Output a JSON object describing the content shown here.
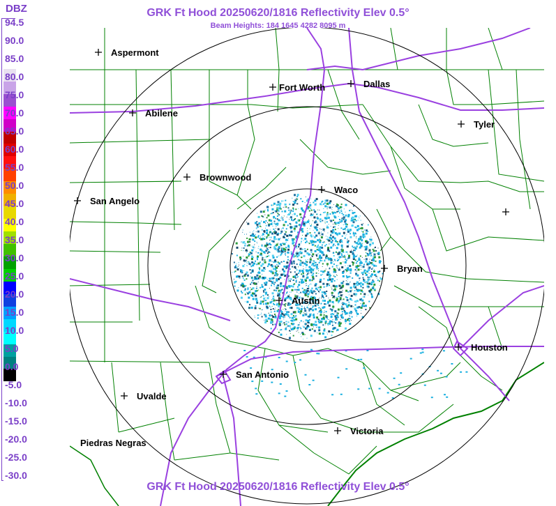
{
  "header": {
    "title": "GRK Ft Hood 20250620/1816 Reflectivity Elev 0.5°",
    "beam_heights": "Beam Heights: 184 1645 4282 8095 m"
  },
  "footer": {
    "title": "GRK Ft Hood 20250620/1816 Reflectivity Elev 0.5°"
  },
  "legend": {
    "unit": "DBZ",
    "labels": [
      "94.5",
      "90.0",
      "85.0",
      "80.0",
      "75.0",
      "70.0",
      "65.0",
      "60.0",
      "55.0",
      "50.0",
      "45.0",
      "40.0",
      "35.0",
      "30.0",
      "25.0",
      "20.0",
      "15.0",
      "10.0",
      "5.0",
      "0.0",
      "-5.0",
      "-10.0",
      "-15.0",
      "-20.0",
      "-25.0",
      "-30.0"
    ],
    "colors": [
      "#ffffff",
      "#ffffff",
      "#ffffff",
      "#ffffff",
      "#e8e0f0",
      "#c9a4e8",
      "#9a50d0",
      "#ff00ff",
      "#d000c8",
      "#c00000",
      "#e00000",
      "#ff1010",
      "#ff4000",
      "#ff8c00",
      "#f0b000",
      "#e8d800",
      "#ffff00",
      "#a0e000",
      "#40c000",
      "#00a000",
      "#00d000",
      "#0000ff",
      "#1040e0",
      "#00a0ff",
      "#00d8ff",
      "#00ffff",
      "#00a0a0",
      "#008080",
      "#000000",
      "#ffffff",
      "#ffffff",
      "#ffffff",
      "#ffffff",
      "#ffffff",
      "#ffffff",
      "#ffffff",
      "#ffffff"
    ]
  },
  "map": {
    "cities": [
      {
        "name": "Aspermont"
      },
      {
        "name": "Abilene"
      },
      {
        "name": "Fort Worth"
      },
      {
        "name": "Dallas"
      },
      {
        "name": "Tyler"
      },
      {
        "name": "Brownwood"
      },
      {
        "name": "Waco"
      },
      {
        "name": "San Angelo"
      },
      {
        "name": "Bryan"
      },
      {
        "name": "Austin"
      },
      {
        "name": "Houston"
      },
      {
        "name": "San Antonio"
      },
      {
        "name": "Uvalde"
      },
      {
        "name": "Victoria"
      },
      {
        "name": "Piedras Negras"
      }
    ],
    "unlabeled_marker_count": 1,
    "colors": {
      "county_lines": "#008000",
      "highways": "#9a40e0",
      "range_rings": "#000000",
      "echo_main": "#1ab0e0",
      "echo_dark": "#1a4a6a",
      "echo_green": "#2a9a3a"
    }
  }
}
